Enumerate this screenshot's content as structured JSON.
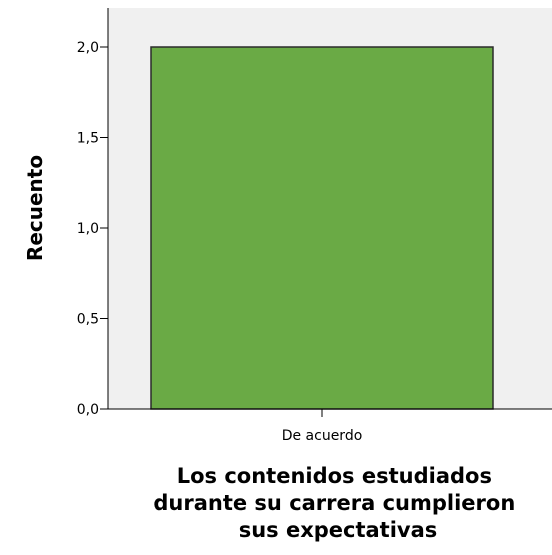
{
  "chart_data": {
    "type": "bar",
    "categories": [
      "De acuerdo"
    ],
    "values": [
      2
    ],
    "ylabel": "Recuento",
    "xlabel_lines": [
      "Los contenidos estudiados",
      "durante su carrera cumplieron",
      "sus expectativas"
    ],
    "ylim": [
      0,
      2.2
    ],
    "yticks": [
      0,
      0.5,
      1.0,
      1.5,
      2.0
    ],
    "ytick_labels": [
      "0,0",
      "0,5",
      "1,0",
      "1,5",
      "2,0"
    ],
    "grid": false,
    "legend": "none",
    "bar_color": "#6aaa45",
    "bar_edge_color": "#2b2b2b",
    "plot_background": "#f0f0f0"
  }
}
